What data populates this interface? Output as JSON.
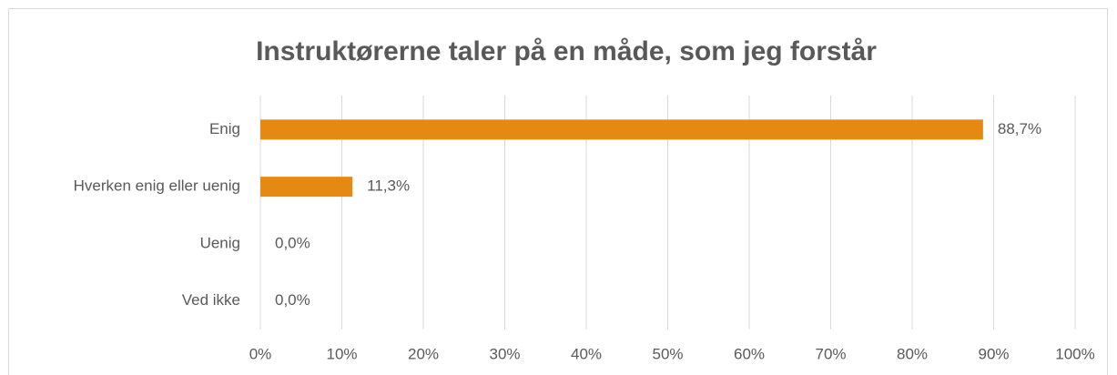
{
  "chart_data": {
    "type": "bar",
    "orientation": "horizontal",
    "title": "Instruktørerne taler på en måde, som jeg forstår",
    "categories": [
      "Enig",
      "Hverken enig eller uenig",
      "Uenig",
      "Ved ikke"
    ],
    "values": [
      88.7,
      11.3,
      0,
      0
    ],
    "value_labels": [
      "88,7%",
      "11,3%",
      "0,0%",
      "0,0%"
    ],
    "color": "#e48a12",
    "xlim": [
      0,
      100
    ],
    "xticks": [
      {
        "value": 0,
        "label": "0%"
      },
      {
        "value": 10,
        "label": "10%"
      },
      {
        "value": 20,
        "label": "20%"
      },
      {
        "value": 30,
        "label": "30%"
      },
      {
        "value": 40,
        "label": "40%"
      },
      {
        "value": 50,
        "label": "50%"
      },
      {
        "value": 60,
        "label": "60%"
      },
      {
        "value": 70,
        "label": "70%"
      },
      {
        "value": 80,
        "label": "80%"
      },
      {
        "value": 90,
        "label": "90%"
      },
      {
        "value": 100,
        "label": "100%"
      }
    ],
    "grid": true
  }
}
